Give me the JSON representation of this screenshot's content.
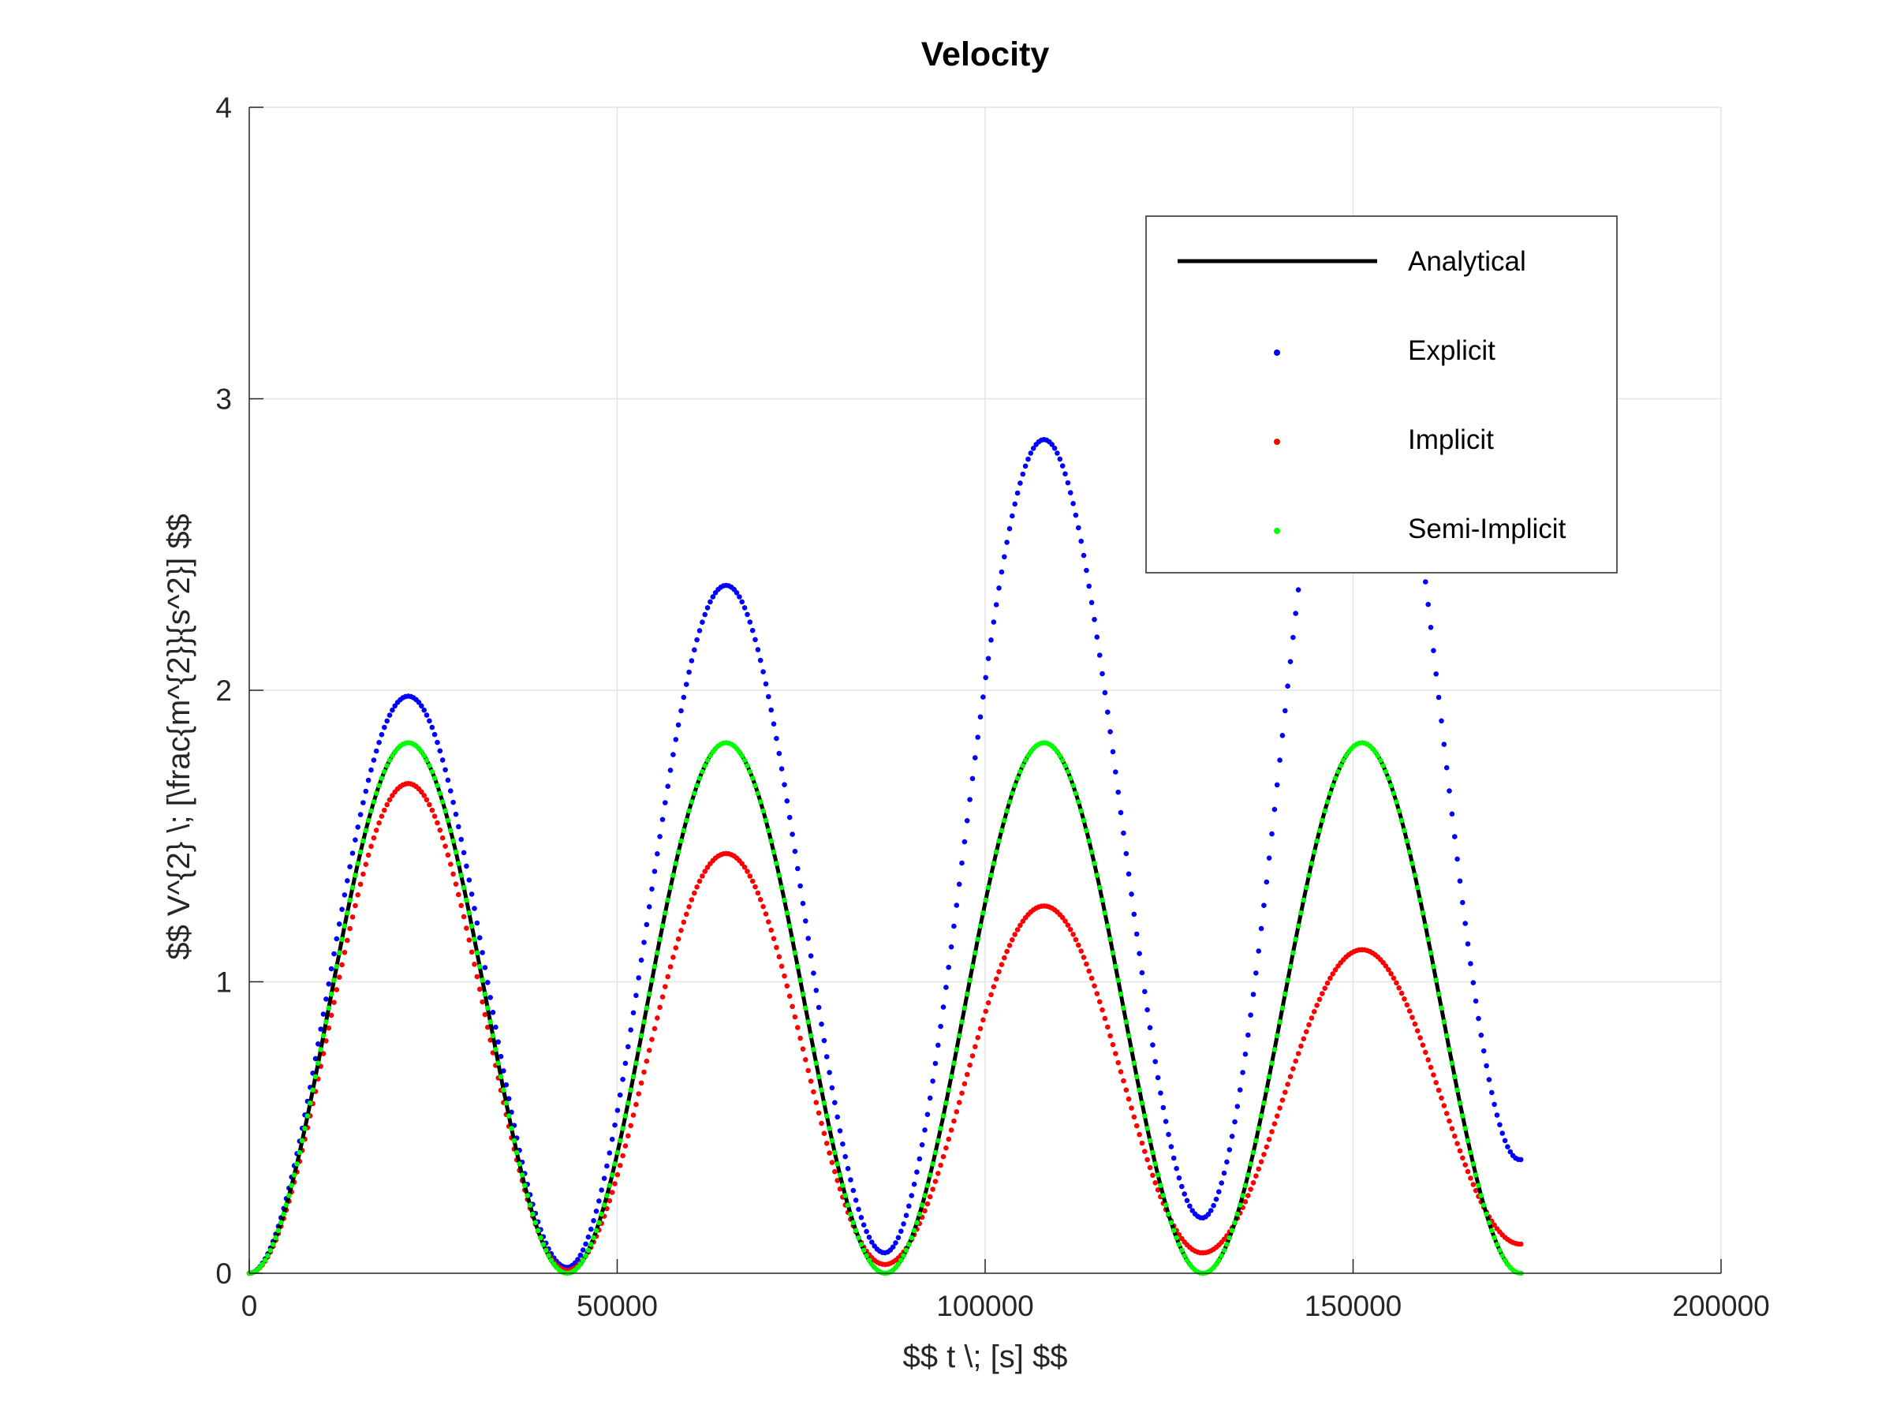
{
  "chart_data": {
    "type": "scatter",
    "title": "Velocity",
    "xlabel": "$$ t \\; [s] $$",
    "ylabel": "$$ V^{2} \\; [\\frac{m^{2}}{s^2}] $$",
    "xlim": [
      0,
      200000
    ],
    "ylim": [
      0,
      4
    ],
    "xticks": [
      0,
      50000,
      100000,
      150000,
      200000
    ],
    "xtick_labels": [
      "0",
      "50000",
      "100000",
      "150000",
      "200000"
    ],
    "yticks": [
      0,
      1,
      2,
      3,
      4
    ],
    "ytick_labels": [
      "0",
      "1",
      "2",
      "3",
      "4"
    ],
    "grid": true,
    "legend_position": "top-right",
    "period_s": 43200,
    "t_end_s": 172800,
    "series": [
      {
        "name": "Analytical",
        "style": "line",
        "color": "#000000",
        "amplitude": 1.82,
        "growth_per_cycle": 1.0,
        "min_values": [
          0,
          0,
          0,
          0
        ]
      },
      {
        "name": "Explicit",
        "style": "dots",
        "color": "#0000ff",
        "peak_values": [
          1.98,
          2.36,
          2.86,
          3.45
        ],
        "min_values": [
          0.02,
          0.07,
          0.19,
          0.39
        ]
      },
      {
        "name": "Implicit",
        "style": "dots",
        "color": "#ff0000",
        "peak_values": [
          1.68,
          1.44,
          1.26,
          1.11
        ],
        "min_values": [
          0.01,
          0.03,
          0.07,
          0.1
        ]
      },
      {
        "name": "Semi-Implicit",
        "style": "dots",
        "color": "#00ff00",
        "peak_values": [
          1.82,
          1.82,
          1.82,
          1.82
        ],
        "min_values": [
          0,
          0,
          0,
          0
        ]
      }
    ]
  }
}
